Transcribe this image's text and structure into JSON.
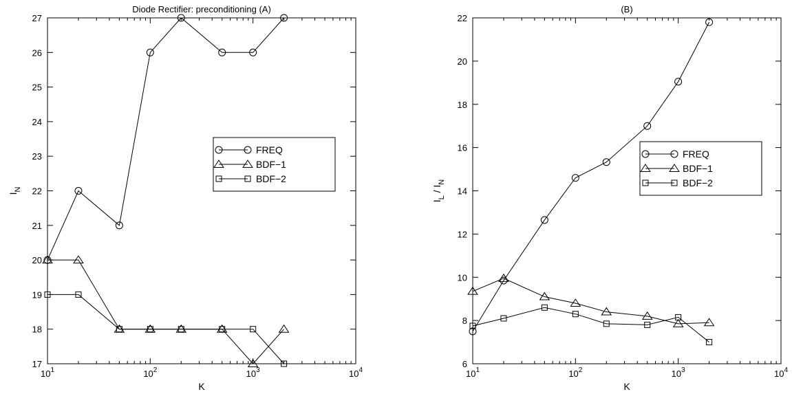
{
  "chart_data": [
    {
      "type": "line",
      "title": "Diode Rectifier: preconditioning (A)",
      "xlabel": "K",
      "ylabel_main": "I",
      "ylabel_sub": "N",
      "x_scale": "log",
      "xlim": [
        10,
        10000
      ],
      "ylim": [
        17,
        27
      ],
      "x_ticks": [
        {
          "value": 10,
          "base": "10",
          "exp": "1"
        },
        {
          "value": 100,
          "base": "10",
          "exp": "2"
        },
        {
          "value": 1000,
          "base": "10",
          "exp": "3"
        },
        {
          "value": 10000,
          "base": "10",
          "exp": "4"
        }
      ],
      "y_ticks": [
        17,
        18,
        19,
        20,
        21,
        22,
        23,
        24,
        25,
        26,
        27
      ],
      "grid": false,
      "legend_position": "right-middle",
      "x": [
        10,
        20,
        50,
        100,
        200,
        500,
        1000,
        2000
      ],
      "series": [
        {
          "name": "FREQ",
          "marker": "circle",
          "values": [
            20,
            22,
            21,
            26,
            27,
            26,
            26,
            27
          ]
        },
        {
          "name": "BDF−1",
          "marker": "triangle",
          "values": [
            20,
            20,
            18,
            18,
            18,
            18,
            17,
            18
          ]
        },
        {
          "name": "BDF−2",
          "marker": "square",
          "values": [
            19,
            19,
            18,
            18,
            18,
            18,
            18,
            17
          ]
        }
      ]
    },
    {
      "type": "line",
      "title": "(B)",
      "xlabel": "K",
      "ylabel_main": "I",
      "ylabel_sub1": "L",
      "ylabel_sep": " / I",
      "ylabel_sub2": "N",
      "x_scale": "log",
      "xlim": [
        10,
        10000
      ],
      "ylim": [
        6,
        22
      ],
      "x_ticks": [
        {
          "value": 10,
          "base": "10",
          "exp": "1"
        },
        {
          "value": 100,
          "base": "10",
          "exp": "2"
        },
        {
          "value": 1000,
          "base": "10",
          "exp": "3"
        },
        {
          "value": 10000,
          "base": "10",
          "exp": "4"
        }
      ],
      "y_ticks": [
        6,
        8,
        10,
        12,
        14,
        16,
        18,
        20,
        22
      ],
      "grid": false,
      "legend_position": "right-middle",
      "x": [
        10,
        20,
        50,
        100,
        200,
        500,
        1000,
        2000
      ],
      "series": [
        {
          "name": "FREQ",
          "marker": "circle",
          "values": [
            7.5,
            9.85,
            12.65,
            14.6,
            15.33,
            17.0,
            19.05,
            21.8
          ]
        },
        {
          "name": "BDF−1",
          "marker": "triangle",
          "values": [
            9.35,
            9.95,
            9.1,
            8.8,
            8.4,
            8.2,
            7.85,
            7.9
          ]
        },
        {
          "name": "BDF−2",
          "marker": "square",
          "values": [
            7.75,
            8.1,
            8.6,
            8.3,
            7.85,
            7.8,
            8.15,
            7.0
          ]
        }
      ]
    }
  ]
}
